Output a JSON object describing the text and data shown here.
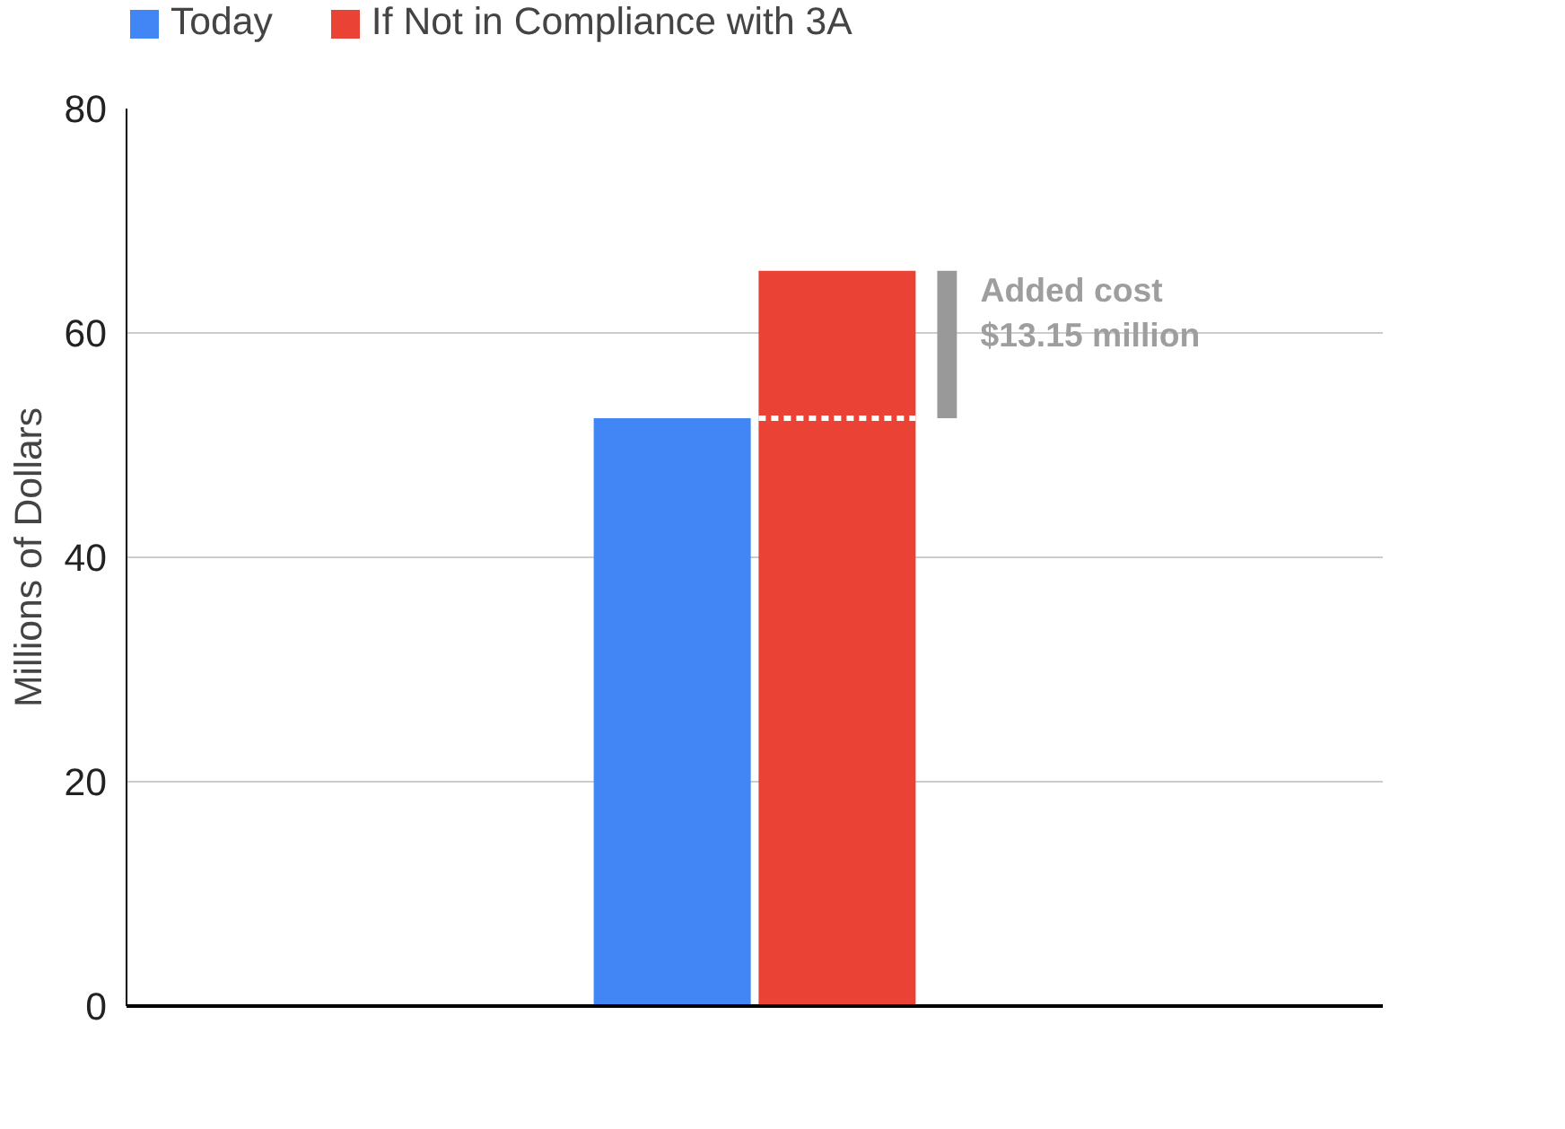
{
  "chart_data": {
    "type": "bar",
    "categories": [
      null
    ],
    "ylabel": "Millions of Dollars",
    "series": [
      {
        "name": "Today",
        "color": "#4285f4",
        "values": [
          52.4
        ]
      },
      {
        "name": "If Not in Compliance with 3A",
        "color": "#ea4335",
        "values": [
          65.55
        ]
      },
      {
        "color": "#999999",
        "values": [
          13.15
        ],
        "base": [
          52.4
        ]
      }
    ],
    "ylim": [
      0,
      80
    ],
    "yticks": [
      0,
      20,
      40,
      60,
      80
    ],
    "grid": "y",
    "legend": "top left",
    "ref_lines": [
      {
        "axis": "y",
        "value": 52.4,
        "color": "#ffffff",
        "line_style": "dashed"
      }
    ],
    "annotations": [
      "Added cost\n$13.15 million"
    ]
  }
}
